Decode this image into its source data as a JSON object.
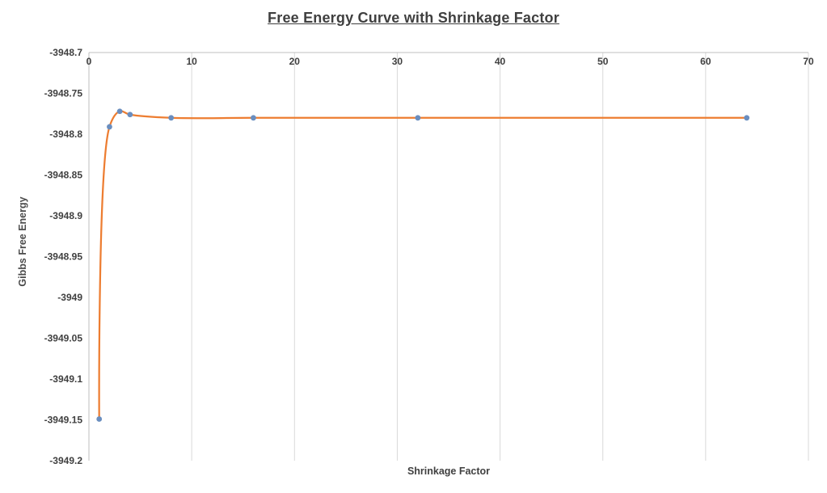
{
  "chart": {
    "title": "Free Energy Curve with Shrinkage Factor",
    "xlabel": "Shrinkage Factor",
    "ylabel": "Gibbs Free Energy"
  },
  "chart_data": {
    "type": "line",
    "title": "Free Energy Curve with Shrinkage Factor",
    "xlabel": "Shrinkage Factor",
    "ylabel": "Gibbs Free Energy",
    "x": [
      1,
      2,
      3,
      4,
      8,
      16,
      32,
      64
    ],
    "y": [
      -3949.149,
      -3948.791,
      -3948.772,
      -3948.776,
      -3948.78,
      -3948.78,
      -3948.78,
      -3948.78
    ],
    "xlim": [
      0,
      70
    ],
    "ylim": [
      -3949.2,
      -3948.7
    ],
    "x_ticks": [
      0,
      10,
      20,
      30,
      40,
      50,
      60,
      70
    ],
    "x_tick_labels": [
      "0",
      "10",
      "20",
      "30",
      "40",
      "50",
      "60",
      "70"
    ],
    "y_ticks": [
      -3948.7,
      -3948.75,
      -3948.8,
      -3948.85,
      -3948.9,
      -3948.95,
      -3949,
      -3949.05,
      -3949.1,
      -3949.15,
      -3949.2
    ],
    "y_tick_labels": [
      "-3948.7",
      "-3948.75",
      "-3948.8",
      "-3948.85",
      "-3948.9",
      "-3948.95",
      "-3949",
      "-3949.05",
      "-3949.1",
      "-3949.15",
      "-3949.2"
    ],
    "grid": "vertical",
    "legend": "none",
    "smooth": true,
    "line_color": "#ED7D31",
    "marker_color": "#6A8EBF",
    "grid_color": "#D9D9D9",
    "axis_color": "#BFBFBF",
    "text_color": "#404040"
  }
}
